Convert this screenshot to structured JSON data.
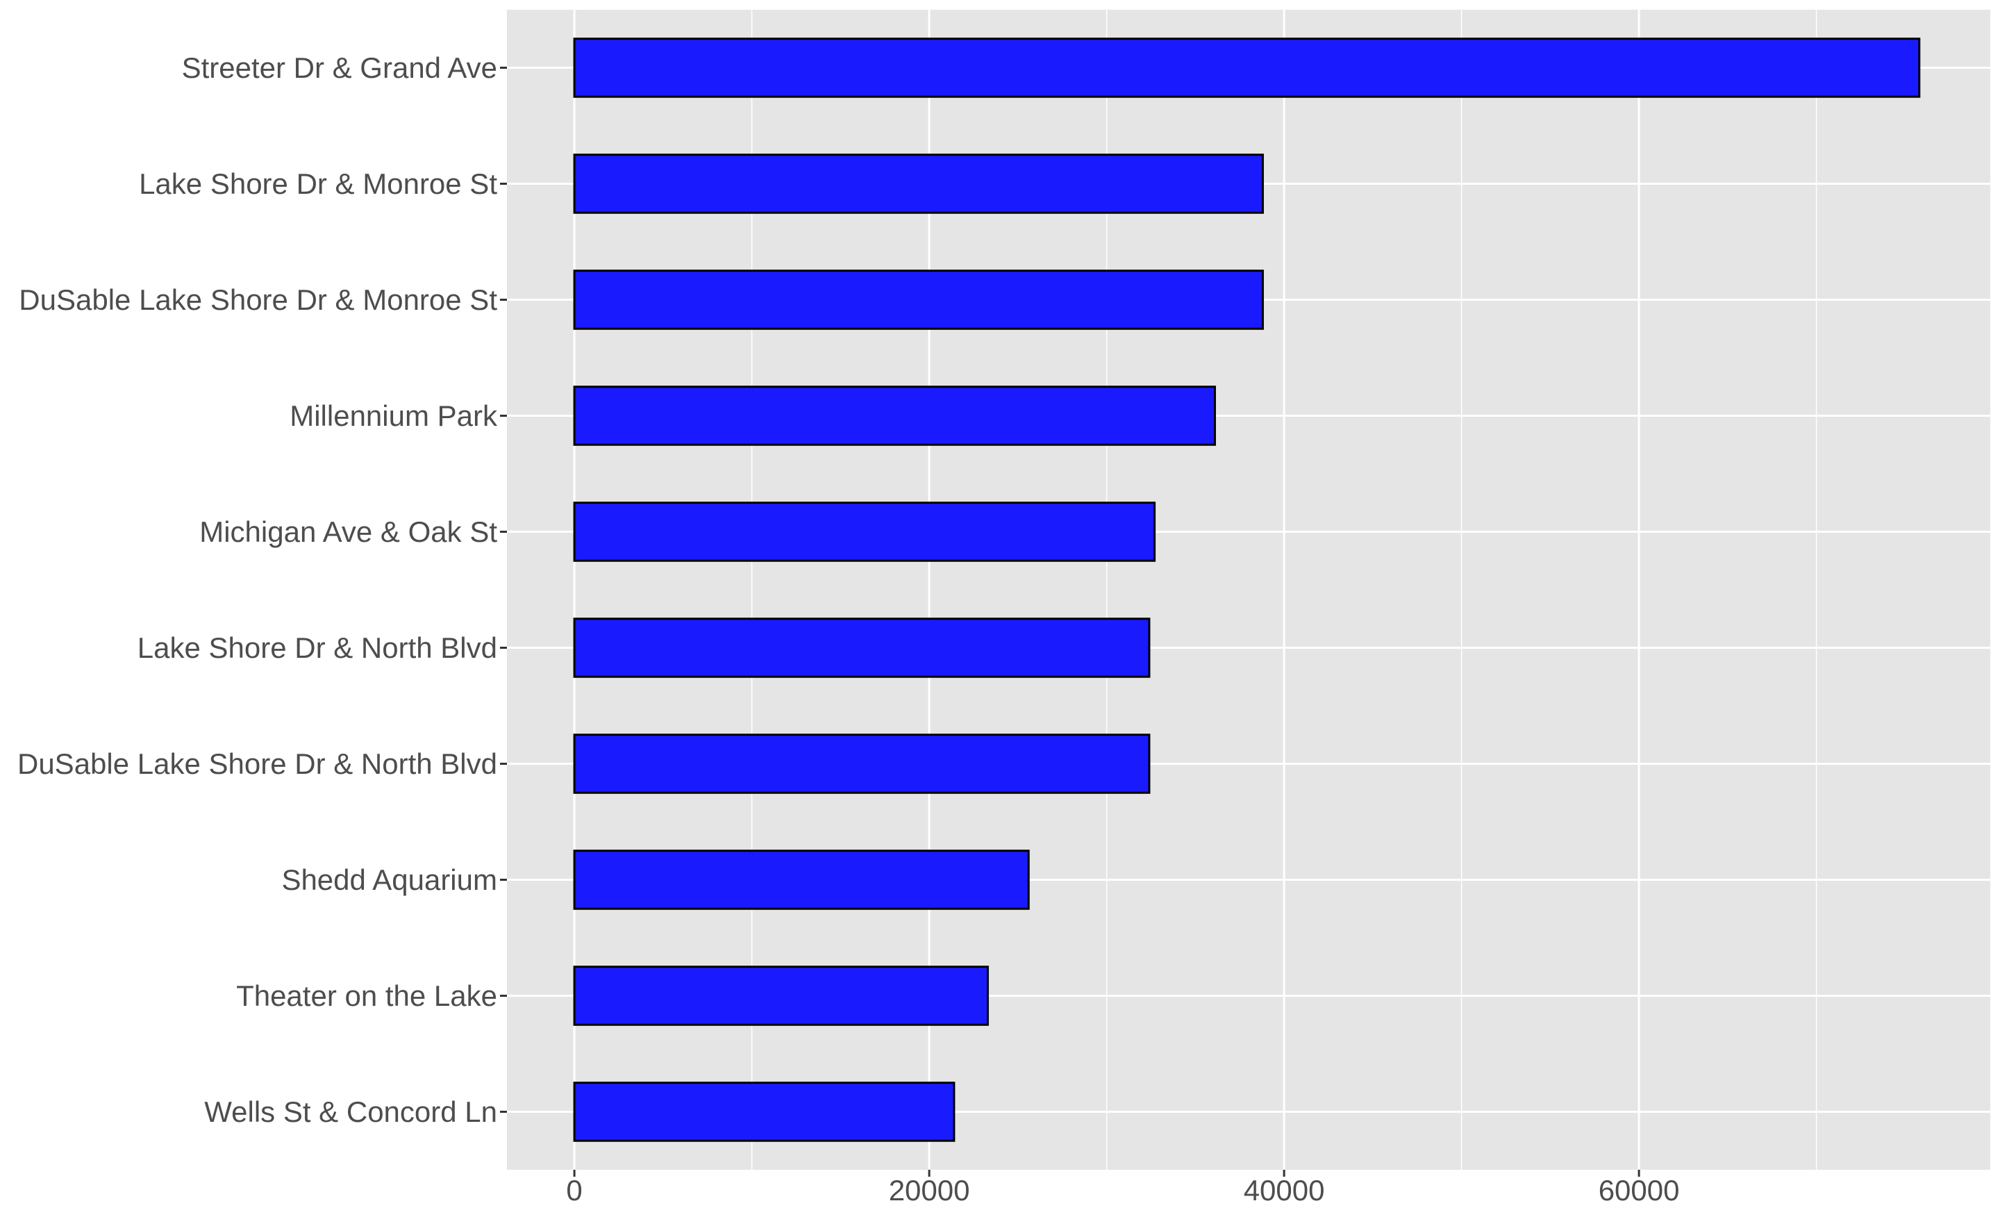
{
  "chart_data": {
    "type": "bar",
    "orientation": "horizontal",
    "categories": [
      "Streeter Dr & Grand Ave",
      "Lake Shore Dr & Monroe St",
      "DuSable Lake Shore Dr & Monroe St",
      "Millennium Park",
      "Michigan Ave & Oak St",
      "Lake Shore Dr & North Blvd",
      "DuSable Lake Shore Dr & North Blvd",
      "Shedd Aquarium",
      "Theater on the Lake",
      "Wells St & Concord Ln"
    ],
    "values": [
      75800,
      38800,
      38800,
      36100,
      32700,
      32400,
      32400,
      25600,
      23300,
      21400
    ],
    "xlim": [
      -3800,
      79800
    ],
    "x_ticks": [
      0,
      20000,
      40000,
      60000
    ],
    "x_tick_labels": [
      "0",
      "20000",
      "40000",
      "60000"
    ],
    "title": "",
    "xlabel": "",
    "ylabel": "",
    "grid": true,
    "legend": "none",
    "colors": {
      "panel_background": "#e5e5e5",
      "grid_line": "#ffffff",
      "bar_fill": "#1a1aff",
      "bar_outline": "#000000",
      "tick_mark": "#333333",
      "tick_label": "#4d4d4d"
    }
  }
}
